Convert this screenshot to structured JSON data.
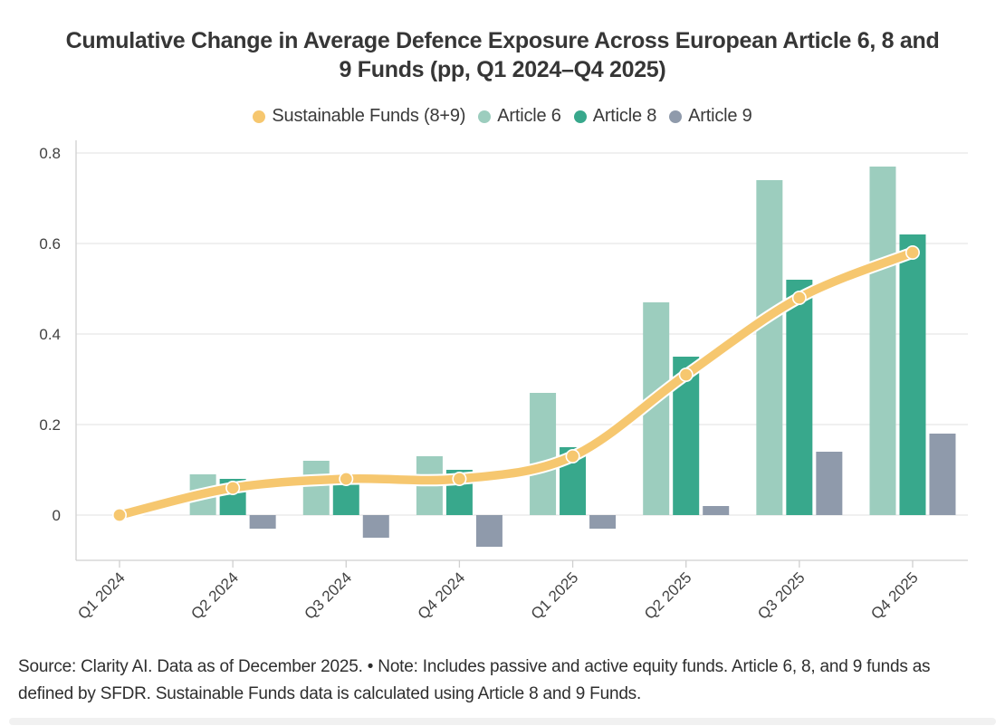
{
  "title": {
    "line1": "Cumulative Change in Average Defence Exposure Across European Article 6, 8 and",
    "line2": "9 Funds (pp, Q1 2024–Q4 2025)"
  },
  "legend": [
    {
      "label": "Sustainable Funds (8+9)",
      "color": "#f6c76f",
      "marker": "dot"
    },
    {
      "label": "Article 6",
      "color": "#9ccdbe",
      "marker": "dot"
    },
    {
      "label": "Article 8",
      "color": "#38a88c",
      "marker": "dot"
    },
    {
      "label": "Article 9",
      "color": "#8f9aab",
      "marker": "dot"
    }
  ],
  "chart_data": {
    "type": "bar",
    "title": "Cumulative Change in Average Defence Exposure Across European Article 6, 8 and 9 Funds (pp, Q1 2024–Q4 2025)",
    "categories": [
      "Q1 2024",
      "Q2 2024",
      "Q3 2024",
      "Q4 2024",
      "Q1 2025",
      "Q2 2025",
      "Q3 2025",
      "Q4 2025"
    ],
    "series": [
      {
        "name": "Article 6",
        "type": "bar",
        "color": "#9ccdbe",
        "values": [
          0,
          0.09,
          0.12,
          0.13,
          0.27,
          0.47,
          0.74,
          0.77
        ]
      },
      {
        "name": "Article 8",
        "type": "bar",
        "color": "#38a88c",
        "values": [
          0,
          0.08,
          0.08,
          0.1,
          0.15,
          0.35,
          0.52,
          0.62
        ]
      },
      {
        "name": "Article 9",
        "type": "bar",
        "color": "#8f9aab",
        "values": [
          0,
          -0.03,
          -0.05,
          -0.07,
          -0.03,
          0.02,
          0.14,
          0.18
        ]
      },
      {
        "name": "Sustainable Funds (8+9)",
        "type": "line",
        "color": "#f6c76f",
        "values": [
          0,
          0.06,
          0.08,
          0.08,
          0.13,
          0.31,
          0.48,
          0.58
        ]
      }
    ],
    "xlabel": "",
    "ylabel": "",
    "yticks": [
      0,
      0.2,
      0.4,
      0.6,
      0.8
    ],
    "ylim": [
      -0.1,
      0.84
    ],
    "grid": true,
    "legend_position": "top",
    "colors": {
      "grid": "#e8e8e8",
      "spine": "#cfcfcf",
      "tick_text": "#414141",
      "line_halo": "#ffffff"
    }
  },
  "footer": {
    "source_note": "Source: Clarity AI. Data as of December 2025. • Note: Includes passive and active equity funds. Article 6, 8, and 9 funds as defined by SFDR. Sustainable Funds data is calculated using Article 8 and 9 Funds."
  }
}
